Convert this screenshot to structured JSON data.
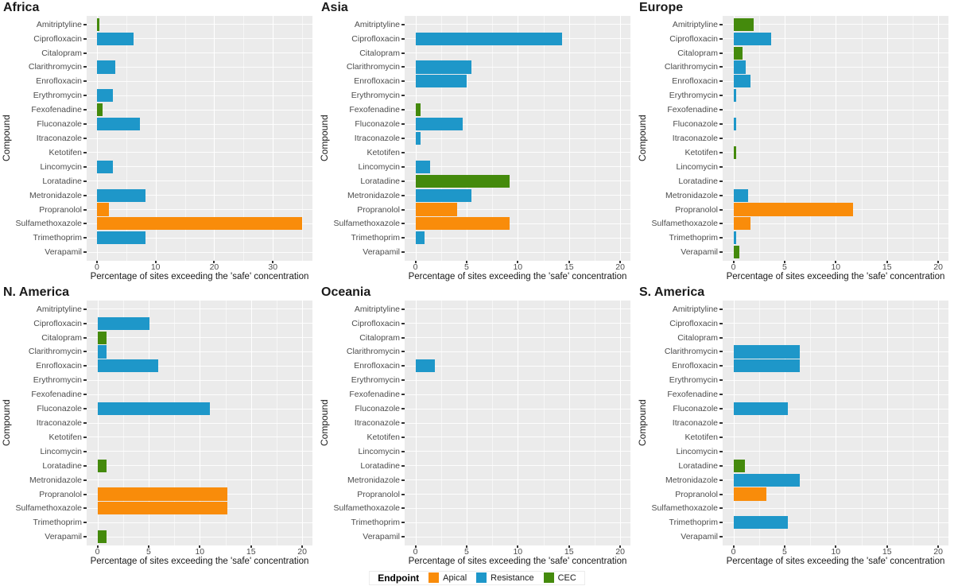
{
  "figure": {
    "background": "#FFFFFF",
    "panel_background": "#EBEBEB",
    "grid_color": "#FFFFFF",
    "x_axis_title": "Percentage of sites exceeding the 'safe' concentration",
    "y_axis_title": "Compound"
  },
  "legend": {
    "title": "Endpoint",
    "entries": [
      {
        "label": "Apical",
        "color": "#F98C0A"
      },
      {
        "label": "Resistance",
        "color": "#1E97C9"
      },
      {
        "label": "CEC",
        "color": "#448A0C"
      }
    ]
  },
  "chart_data": {
    "type": "bar",
    "orientation": "horizontal",
    "facet_layout": "2 rows x 3 columns",
    "grid": "on",
    "legend_position": "bottom",
    "endpoint_colors": {
      "Apical": "#F98C0A",
      "Resistance": "#1E97C9",
      "CEC": "#448A0C"
    },
    "categories": [
      "Amitriptyline",
      "Ciprofloxacin",
      "Citalopram",
      "Clarithromycin",
      "Enrofloxacin",
      "Erythromycin",
      "Fexofenadine",
      "Fluconazole",
      "Itraconazole",
      "Ketotifen",
      "Lincomycin",
      "Loratadine",
      "Metronidazole",
      "Propranolol",
      "Sulfamethoxazole",
      "Trimethoprim",
      "Verapamil"
    ],
    "panels": [
      {
        "title": "Africa",
        "x_ticks": [
          0,
          10,
          20,
          30
        ],
        "x_minor_ticks": [
          5,
          15,
          25,
          35
        ],
        "x_range": [
          -1.75,
          36.75
        ],
        "values": [
          0.4,
          6.2,
          0,
          3.1,
          0,
          2.7,
          0.9,
          7.4,
          0,
          0,
          2.7,
          0,
          8.3,
          2.1,
          35,
          8.3,
          0
        ],
        "endpoints": [
          "CEC",
          "Resistance",
          null,
          "Resistance",
          null,
          "Resistance",
          "CEC",
          "Resistance",
          null,
          null,
          "Resistance",
          null,
          "Resistance",
          "Apical",
          "Apical",
          "Resistance",
          null
        ]
      },
      {
        "title": "Asia",
        "x_ticks": [
          0,
          5,
          10,
          15,
          20
        ],
        "x_minor_ticks": [
          2.5,
          7.5,
          12.5,
          17.5
        ],
        "x_range": [
          -1.05,
          21
        ],
        "values": [
          0,
          14.3,
          0,
          5.5,
          5.0,
          0,
          0.5,
          4.6,
          0.5,
          0,
          1.4,
          9.2,
          5.5,
          4.1,
          9.2,
          0.9,
          0
        ],
        "endpoints": [
          null,
          "Resistance",
          null,
          "Resistance",
          "Resistance",
          null,
          "CEC",
          "Resistance",
          "Resistance",
          null,
          "Resistance",
          "CEC",
          "Resistance",
          "Apical",
          "Apical",
          "Resistance",
          null
        ]
      },
      {
        "title": "Europe",
        "x_ticks": [
          0,
          5,
          10,
          15,
          20
        ],
        "x_minor_ticks": [
          2.5,
          7.5,
          12.5,
          17.5
        ],
        "x_range": [
          -1.05,
          21
        ],
        "values": [
          2.0,
          3.7,
          0.9,
          1.2,
          1.7,
          0.3,
          0,
          0.3,
          0,
          0.3,
          0,
          0,
          1.4,
          11.7,
          1.7,
          0.3,
          0.6
        ],
        "endpoints": [
          "CEC",
          "Resistance",
          "CEC",
          "Resistance",
          "Resistance",
          "Resistance",
          null,
          "Resistance",
          null,
          "CEC",
          null,
          null,
          "Resistance",
          "Apical",
          "Apical",
          "Resistance",
          "CEC"
        ]
      },
      {
        "title": "N. America",
        "x_ticks": [
          0,
          5,
          10,
          15,
          20
        ],
        "x_minor_ticks": [
          2.5,
          7.5,
          12.5,
          17.5
        ],
        "x_range": [
          -1.05,
          21
        ],
        "values": [
          0,
          5.1,
          0.9,
          0.9,
          5.9,
          0,
          0,
          11.0,
          0,
          0,
          0,
          0.9,
          0,
          12.7,
          12.7,
          0,
          0.9
        ],
        "endpoints": [
          null,
          "Resistance",
          "CEC",
          "Resistance",
          "Resistance",
          null,
          null,
          "Resistance",
          null,
          null,
          null,
          "CEC",
          null,
          "Apical",
          "Apical",
          null,
          "CEC"
        ]
      },
      {
        "title": "Oceania",
        "x_ticks": [
          0,
          5,
          10,
          15,
          20
        ],
        "x_minor_ticks": [
          2.5,
          7.5,
          12.5,
          17.5
        ],
        "x_range": [
          -1.05,
          21
        ],
        "values": [
          0,
          0,
          0,
          0,
          1.9,
          0,
          0,
          0,
          0,
          0,
          0,
          0,
          0,
          0,
          0,
          0,
          0
        ],
        "endpoints": [
          null,
          null,
          null,
          null,
          "Resistance",
          null,
          null,
          null,
          null,
          null,
          null,
          null,
          null,
          null,
          null,
          null,
          null
        ]
      },
      {
        "title": "S. America",
        "x_ticks": [
          0,
          5,
          10,
          15,
          20
        ],
        "x_minor_ticks": [
          2.5,
          7.5,
          12.5,
          17.5
        ],
        "x_range": [
          -1.05,
          21
        ],
        "values": [
          0,
          0,
          0,
          6.5,
          6.5,
          0,
          0,
          5.3,
          0,
          0,
          0,
          1.1,
          6.5,
          3.2,
          0,
          5.3,
          0
        ],
        "endpoints": [
          null,
          null,
          null,
          "Resistance",
          "Resistance",
          null,
          null,
          "Resistance",
          null,
          null,
          null,
          "CEC",
          "Resistance",
          "Apical",
          null,
          "Resistance",
          null
        ]
      }
    ]
  }
}
